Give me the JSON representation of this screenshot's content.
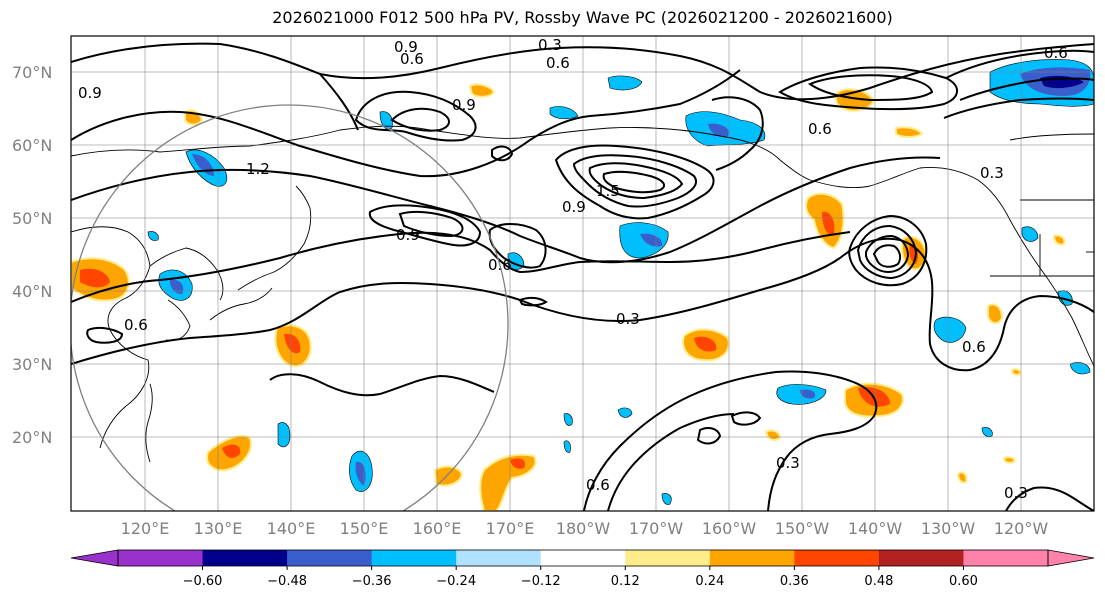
{
  "title": "2026021000 F012 500 hPa PV, Rossby Wave PC (2026021200 - 2026021600)",
  "lat_labels": [
    "70°N",
    "60°N",
    "50°N",
    "40°N",
    "30°N",
    "20°N"
  ],
  "lon_labels": [
    "120°E",
    "130°E",
    "140°E",
    "150°E",
    "160°E",
    "170°E",
    "180°W",
    "170°W",
    "160°W",
    "150°W",
    "140°W",
    "130°W",
    "120°W"
  ],
  "colorbar": {
    "colors": [
      "#9932cc",
      "#00008b",
      "#3a5fcd",
      "#00bfff",
      "#b0e2ff",
      "#ffffff",
      "#ffec8b",
      "#ffa500",
      "#ff4500",
      "#b22222",
      "#ff82ab"
    ],
    "ticks": [
      "−0.60",
      "−0.48",
      "−0.36",
      "−0.24",
      "−0.12",
      "0.12",
      "0.24",
      "0.36",
      "0.48",
      "0.60"
    ]
  },
  "contour_labels": [
    {
      "text": "0.9",
      "id": "c1"
    },
    {
      "text": "0.3",
      "id": "c2"
    },
    {
      "text": "0.6",
      "id": "c3"
    },
    {
      "text": "0.9",
      "id": "c4"
    },
    {
      "text": "0.6",
      "id": "c5"
    },
    {
      "text": "0.9",
      "id": "c6"
    },
    {
      "text": "1.2",
      "id": "c7"
    },
    {
      "text": "0.9",
      "id": "c8"
    },
    {
      "text": "0.6",
      "id": "c9"
    },
    {
      "text": "1.5",
      "id": "c10"
    },
    {
      "text": "0.9",
      "id": "c11"
    },
    {
      "text": "0.6",
      "id": "c12"
    },
    {
      "text": "0.3",
      "id": "c13"
    },
    {
      "text": "0.6",
      "id": "c14"
    },
    {
      "text": "0.3",
      "id": "c15"
    },
    {
      "text": "0.6",
      "id": "c16"
    },
    {
      "text": "0.3",
      "id": "c17"
    },
    {
      "text": "0.6",
      "id": "c18"
    },
    {
      "text": "0.3",
      "id": "c19"
    },
    {
      "text": "0.6",
      "id": "c20"
    }
  ]
}
